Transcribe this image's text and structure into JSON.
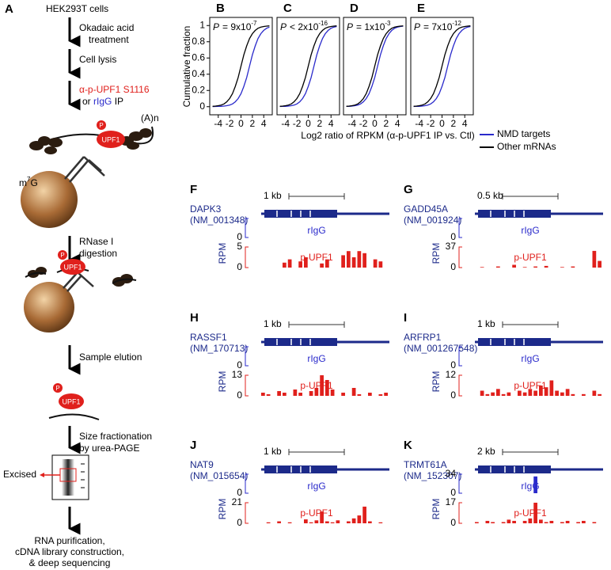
{
  "panel_a": {
    "label": "A",
    "cells": "HEK293T cells",
    "treatment": [
      "Okadaic acid",
      "treatment"
    ],
    "lysis": "Cell lysis",
    "ip": {
      "antibody": "α-p-UPF1 S1116",
      "or": "or",
      "control": "rIgG",
      "suffix": "IP"
    },
    "polya": "(A)n",
    "cap": {
      "m": "m",
      "sup": "7",
      "g": "G"
    },
    "upf1": "UPF1",
    "phospho": "P",
    "digestion": [
      "RNase I",
      "digestion"
    ],
    "elution": "Sample elution",
    "fractionation": [
      "Size fractionation",
      "by urea-PAGE"
    ],
    "excised": "Excised",
    "final": [
      "RNA purification,",
      "cDNA library construction,",
      "& deep sequencing"
    ]
  },
  "chart_data": [
    {
      "type": "line",
      "label": "B",
      "p_value": {
        "symbol": "P",
        "relation": "= 9x10",
        "exponent": "-7"
      },
      "ylabel": "Cumulative fraction",
      "xlabel": "Log2 ratio of RPKM (α-p-UPF1 IP vs. Ctl)",
      "x": [
        -5,
        -4.5,
        -4,
        -3.5,
        -3,
        -2.5,
        -2,
        -1.5,
        -1,
        -0.5,
        0,
        0.5,
        1,
        1.5,
        2,
        2.5,
        3,
        3.5,
        4,
        4.5,
        5
      ],
      "series": [
        {
          "color": "#2a2acb",
          "values": [
            0.001,
            0.002,
            0.003,
            0.004,
            0.007,
            0.012,
            0.02,
            0.034,
            0.06,
            0.1,
            0.16,
            0.25,
            0.36,
            0.5,
            0.64,
            0.75,
            0.84,
            0.9,
            0.94,
            0.966,
            0.98
          ]
        },
        {
          "color": "#000000",
          "values": [
            0.004,
            0.007,
            0.012,
            0.02,
            0.034,
            0.06,
            0.1,
            0.16,
            0.25,
            0.36,
            0.5,
            0.64,
            0.75,
            0.84,
            0.9,
            0.94,
            0.966,
            0.98,
            0.988,
            0.993,
            0.996
          ]
        }
      ],
      "xlim": [
        -5.5,
        5.5
      ],
      "ylim": [
        -0.1,
        1.1
      ],
      "xticks": [
        -4,
        -2,
        0,
        2,
        4
      ],
      "yticks": [
        0,
        0.2,
        0.4,
        0.6,
        0.8,
        1
      ]
    },
    {
      "type": "line",
      "label": "C",
      "p_value": {
        "symbol": "P",
        "relation": "< 2x10",
        "exponent": "-16"
      },
      "x": [
        -5,
        -4.5,
        -4,
        -3.5,
        -3,
        -2.5,
        -2,
        -1.5,
        -1,
        -0.5,
        0,
        0.5,
        1,
        1.5,
        2,
        2.5,
        3,
        3.5,
        4,
        4.5,
        5
      ],
      "series": [
        {
          "color": "#2a2acb",
          "values": [
            0.002,
            0.003,
            0.004,
            0.007,
            0.012,
            0.02,
            0.034,
            0.06,
            0.1,
            0.16,
            0.25,
            0.36,
            0.5,
            0.64,
            0.75,
            0.84,
            0.9,
            0.94,
            0.966,
            0.98,
            0.988
          ]
        },
        {
          "color": "#000000",
          "values": [
            0.004,
            0.007,
            0.012,
            0.02,
            0.034,
            0.06,
            0.1,
            0.16,
            0.25,
            0.36,
            0.5,
            0.64,
            0.75,
            0.84,
            0.9,
            0.94,
            0.966,
            0.98,
            0.988,
            0.993,
            0.996
          ]
        }
      ],
      "xlim": [
        -5.5,
        5.5
      ],
      "ylim": [
        -0.1,
        1.1
      ],
      "xticks": [
        -4,
        -2,
        0,
        2,
        4
      ]
    },
    {
      "type": "line",
      "label": "D",
      "p_value": {
        "symbol": "P",
        "relation": "= 1x10",
        "exponent": "-3"
      },
      "x": [
        -5,
        -4.5,
        -4,
        -3.5,
        -3,
        -2.5,
        -2,
        -1.5,
        -1,
        -0.5,
        0,
        0.5,
        1,
        1.5,
        2,
        2.5,
        3,
        3.5,
        4,
        4.5,
        5
      ],
      "series": [
        {
          "color": "#2a2acb",
          "values": [
            0.003,
            0.004,
            0.007,
            0.012,
            0.02,
            0.034,
            0.06,
            0.1,
            0.16,
            0.25,
            0.36,
            0.5,
            0.64,
            0.75,
            0.84,
            0.9,
            0.94,
            0.966,
            0.98,
            0.988,
            0.993
          ]
        },
        {
          "color": "#000000",
          "values": [
            0.004,
            0.007,
            0.012,
            0.02,
            0.034,
            0.06,
            0.1,
            0.16,
            0.25,
            0.36,
            0.5,
            0.64,
            0.75,
            0.84,
            0.9,
            0.94,
            0.966,
            0.98,
            0.988,
            0.993,
            0.996
          ]
        }
      ],
      "xlim": [
        -5.5,
        5.5
      ],
      "ylim": [
        -0.1,
        1.1
      ],
      "xticks": [
        -4,
        -2,
        0,
        2,
        4
      ]
    },
    {
      "type": "line",
      "label": "E",
      "p_value": {
        "symbol": "P",
        "relation": "= 7x10",
        "exponent": "-12"
      },
      "x": [
        -5,
        -4.5,
        -4,
        -3.5,
        -3,
        -2.5,
        -2,
        -1.5,
        -1,
        -0.5,
        0,
        0.5,
        1,
        1.5,
        2,
        2.5,
        3,
        3.5,
        4,
        4.5,
        5
      ],
      "series": [
        {
          "name": "NMD targets",
          "color": "#2a2acb",
          "values": [
            0.002,
            0.003,
            0.004,
            0.007,
            0.012,
            0.02,
            0.034,
            0.06,
            0.1,
            0.16,
            0.25,
            0.36,
            0.5,
            0.64,
            0.75,
            0.84,
            0.9,
            0.94,
            0.966,
            0.98,
            0.988
          ]
        },
        {
          "name": "Other mRNAs",
          "color": "#000000",
          "values": [
            0.004,
            0.007,
            0.012,
            0.02,
            0.034,
            0.06,
            0.1,
            0.16,
            0.25,
            0.36,
            0.5,
            0.64,
            0.75,
            0.84,
            0.9,
            0.94,
            0.966,
            0.98,
            0.988,
            0.993,
            0.996
          ]
        }
      ],
      "xlim": [
        -5.5,
        5.5
      ],
      "ylim": [
        -0.1,
        1.1
      ],
      "xticks": [
        -4,
        -2,
        0,
        2,
        4
      ]
    }
  ],
  "tracks": [
    {
      "label": "F",
      "gene": "DAPK3",
      "accession": "(NM_001348)",
      "scale": "1 kb",
      "rigg": "rIgG",
      "pupf1": "p-UPF1",
      "rpm": "RPM",
      "rigg_ticks": [
        0
      ],
      "pupf1_ticks": [
        0,
        5
      ],
      "pupf1_values": [
        0,
        0,
        0,
        0,
        1.2,
        2,
        0,
        1.5,
        2.5,
        0,
        0,
        1,
        2,
        0,
        0,
        3,
        4,
        2.5,
        4,
        3.5,
        0,
        2,
        1.5,
        0
      ]
    },
    {
      "label": "G",
      "gene": "GADD45A",
      "accession": "(NM_001924)",
      "scale": "0.5 kb",
      "rigg": "rIgG",
      "pupf1": "p-UPF1",
      "rpm": "RPM",
      "rigg_ticks": [
        0
      ],
      "pupf1_ticks": [
        0,
        37
      ],
      "pupf1_values": [
        0,
        1,
        0,
        0,
        2,
        0,
        0,
        5,
        0,
        1,
        0,
        2,
        0,
        3,
        0,
        0,
        1,
        0,
        2,
        0,
        0,
        0,
        30,
        12
      ]
    },
    {
      "label": "H",
      "gene": "RASSF1",
      "accession": "(NM_170713)",
      "scale": "1 kb",
      "rigg": "rIgG",
      "pupf1": "p-UPF1",
      "rpm": "RPM",
      "rigg_ticks": [
        0
      ],
      "pupf1_ticks": [
        0,
        13
      ],
      "pupf1_values": [
        2,
        1,
        0,
        3,
        2,
        0,
        4,
        2,
        0,
        3,
        5,
        13,
        10,
        4,
        0,
        2,
        0,
        5,
        1,
        0,
        2,
        0,
        1,
        2
      ]
    },
    {
      "label": "I",
      "gene": "ARFRP1",
      "accession": "(NM_001267548)",
      "scale": "1 kb",
      "rigg": "rIgG",
      "pupf1": "p-UPF1",
      "rpm": "RPM",
      "rigg_ticks": [
        0
      ],
      "pupf1_ticks": [
        0,
        12
      ],
      "pupf1_values": [
        0,
        3,
        1,
        2,
        4,
        1,
        2,
        0,
        3,
        2,
        4,
        3,
        6,
        5,
        9,
        3,
        2,
        4,
        1,
        0,
        1,
        0,
        3,
        1
      ]
    },
    {
      "label": "J",
      "gene": "NAT9",
      "accession": "(NM_015654)",
      "scale": "1 kb",
      "rigg": "rIgG",
      "pupf1": "p-UPF1",
      "rpm": "RPM",
      "rigg_ticks": [
        0
      ],
      "pupf1_ticks": [
        0,
        21
      ],
      "pupf1_values": [
        0,
        1,
        0,
        2,
        0,
        1,
        0,
        0,
        4,
        1,
        3,
        12,
        2,
        1,
        3,
        0,
        2,
        5,
        8,
        17,
        2,
        0,
        1,
        0
      ]
    },
    {
      "label": "K",
      "gene": "TRMT61A",
      "accession": "(NM_152307)",
      "scale": "2 kb",
      "rigg": "rIgG",
      "pupf1": "p-UPF1",
      "rpm": "RPM",
      "rigg_ticks": [
        0,
        34
      ],
      "rigg_values": [
        0,
        0,
        0,
        0,
        0,
        0,
        0,
        0,
        0,
        0,
        0,
        30,
        0,
        0,
        0,
        0,
        0,
        0,
        0,
        0,
        0,
        0,
        0,
        0
      ],
      "pupf1_ticks": [
        0,
        17
      ],
      "pupf1_values": [
        1,
        0,
        2,
        1,
        0,
        1,
        3,
        2,
        0,
        2,
        4,
        17,
        3,
        1,
        2,
        0,
        1,
        2,
        0,
        1,
        2,
        0,
        1,
        0
      ]
    }
  ]
}
